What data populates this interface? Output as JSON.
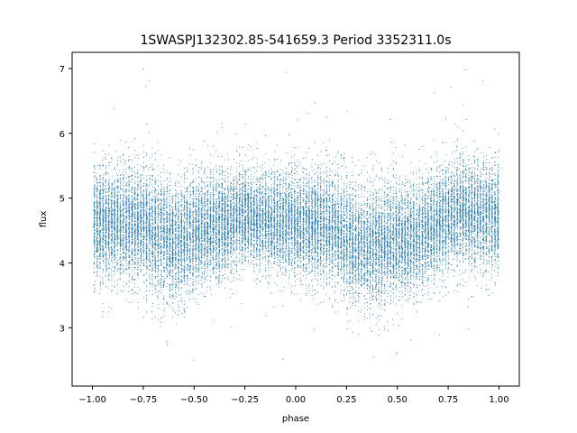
{
  "chart_data": {
    "type": "scatter",
    "title": "1SWASPJ132302.85-541659.3 Period 3352311.0s",
    "xlabel": "phase",
    "ylabel": "flux",
    "xlim": [
      -1.1,
      1.1
    ],
    "ylim": [
      2.1,
      7.25
    ],
    "x_ticks": [
      -1.0,
      -0.75,
      -0.5,
      -0.25,
      0.0,
      0.25,
      0.5,
      0.75,
      1.0
    ],
    "x_tick_labels": [
      "−1.00",
      "−0.75",
      "−0.50",
      "−0.25",
      "0.00",
      "0.25",
      "0.50",
      "0.75",
      "1.00"
    ],
    "y_ticks": [
      3,
      4,
      5,
      6,
      7
    ],
    "y_tick_labels": [
      "3",
      "4",
      "5",
      "6",
      "7"
    ],
    "grid": false,
    "legend": "none",
    "marker_color": "#1f77b4",
    "point_count_estimate": 24000,
    "x_range_of_points": [
      -1.0,
      1.0
    ],
    "series": [
      {
        "y_center_profile": [
          {
            "x": -1.0,
            "y": 4.6
          },
          {
            "x": -0.75,
            "y": 4.6
          },
          {
            "x": -0.6,
            "y": 4.3
          },
          {
            "x": -0.5,
            "y": 4.5
          },
          {
            "x": -0.25,
            "y": 4.7
          },
          {
            "x": 0.0,
            "y": 4.6
          },
          {
            "x": 0.15,
            "y": 4.6
          },
          {
            "x": 0.3,
            "y": 4.25
          },
          {
            "x": 0.45,
            "y": 4.3
          },
          {
            "x": 0.6,
            "y": 4.4
          },
          {
            "x": 0.8,
            "y": 4.8
          },
          {
            "x": 1.0,
            "y": 4.7
          }
        ],
        "y_spread_profile": [
          {
            "x": -1.0,
            "y": 0.4
          },
          {
            "x": -0.6,
            "y": 0.45
          },
          {
            "x": -0.2,
            "y": 0.35
          },
          {
            "x": 0.3,
            "y": 0.45
          },
          {
            "x": 0.6,
            "y": 0.4
          },
          {
            "x": 1.0,
            "y": 0.4
          }
        ],
        "y_extent": [
          2.3,
          7.0
        ]
      }
    ]
  }
}
